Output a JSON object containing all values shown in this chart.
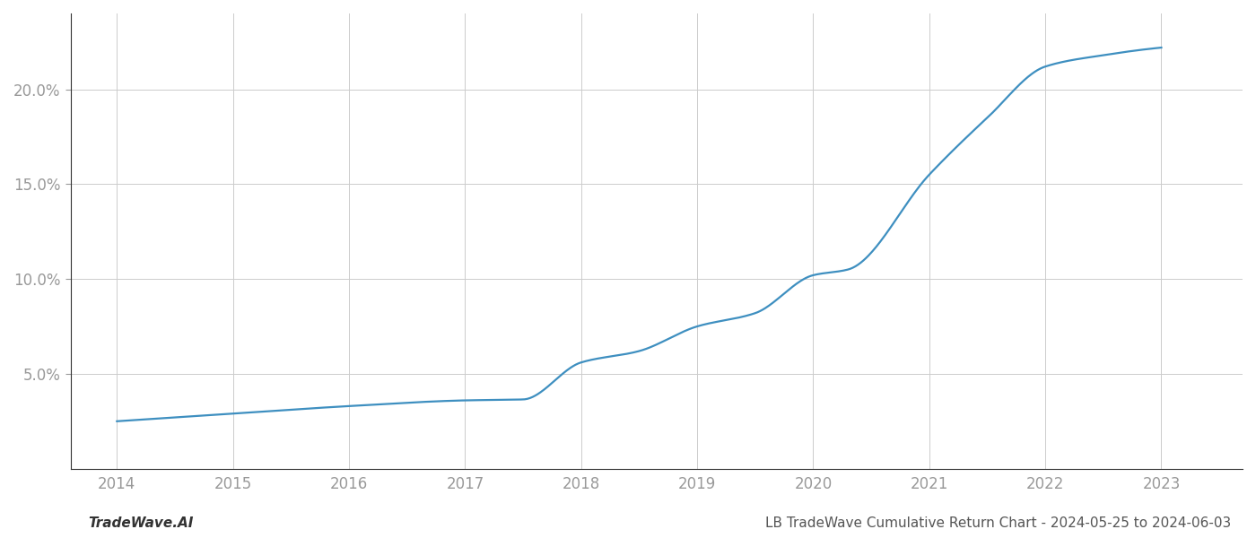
{
  "x_years": [
    2014,
    2015,
    2016,
    2017,
    2017.5,
    2018,
    2018.5,
    2019,
    2019.5,
    2020,
    2020.3,
    2021,
    2021.5,
    2022,
    2022.5,
    2023
  ],
  "y_values": [
    2.5,
    2.9,
    3.3,
    3.6,
    3.65,
    5.6,
    6.2,
    7.5,
    8.2,
    10.2,
    10.5,
    15.5,
    18.5,
    21.2,
    21.8,
    22.2
  ],
  "line_color": "#3e8fc0",
  "line_width": 1.6,
  "title": "LB TradeWave Cumulative Return Chart - 2024-05-25 to 2024-06-03",
  "watermark": "TradeWave.AI",
  "bg_color": "#ffffff",
  "grid_color": "#cccccc",
  "yticks": [
    5.0,
    10.0,
    15.0,
    20.0
  ],
  "ylim": [
    0,
    24
  ],
  "xlim": [
    2013.6,
    2023.7
  ],
  "tick_color": "#999999",
  "label_color": "#999999",
  "title_color": "#555555",
  "watermark_color": "#999999",
  "title_fontsize": 11,
  "watermark_fontsize": 11,
  "tick_fontsize": 12,
  "spine_color": "#333333"
}
